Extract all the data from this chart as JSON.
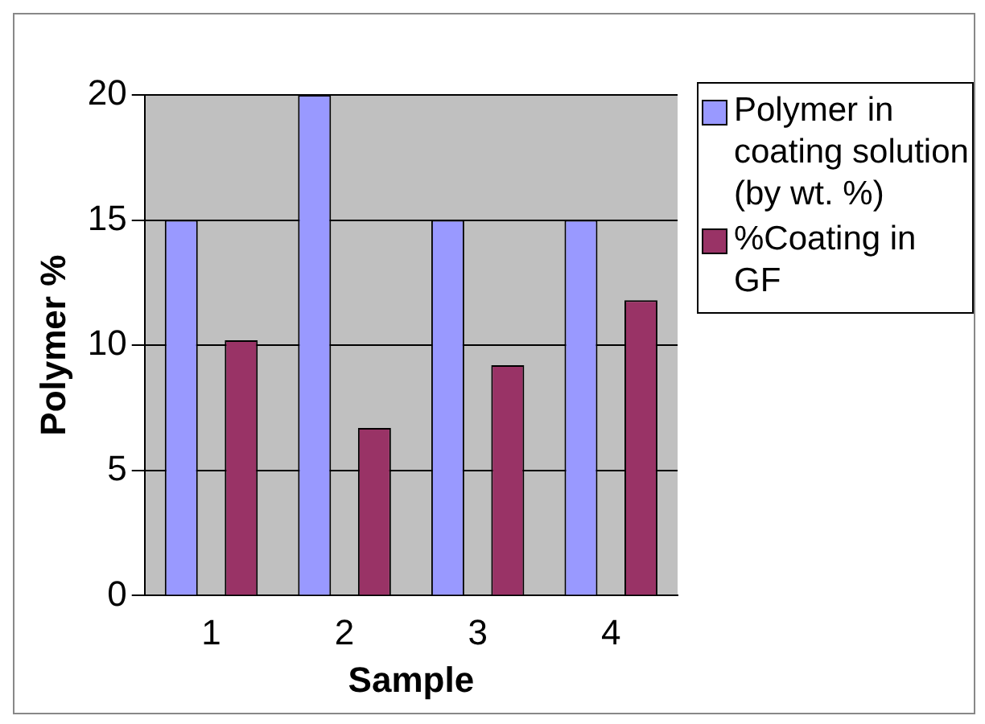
{
  "chart_data": {
    "type": "bar",
    "xlabel": "Sample",
    "ylabel": "Polymer %",
    "categories": [
      "1",
      "2",
      "3",
      "4"
    ],
    "series": [
      {
        "name": "Polymer in coating solution (by wt. %)",
        "color": "#9999ff",
        "values": [
          15,
          20,
          15,
          15
        ]
      },
      {
        "name": "%Coating in GF",
        "color": "#993366",
        "values": [
          10.2,
          6.7,
          9.2,
          11.8
        ]
      }
    ],
    "ylim": [
      0,
      20
    ],
    "yticks": [
      0,
      5,
      10,
      15,
      20
    ],
    "grid": "y",
    "legend": "right"
  }
}
